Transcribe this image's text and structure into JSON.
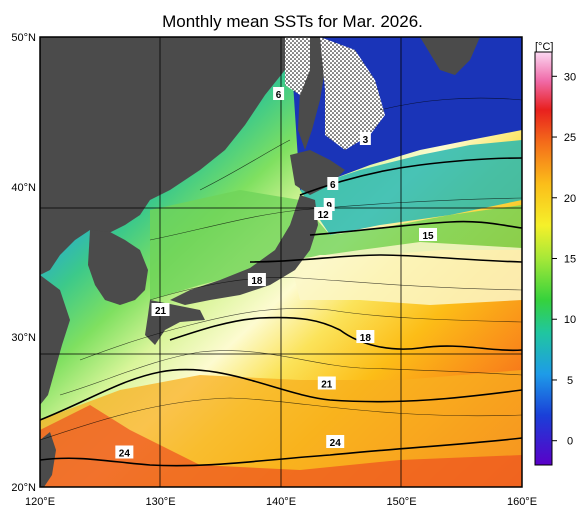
{
  "title": "Monthly mean SSTs for Mar. 2026.",
  "unit_label": "[°C]",
  "colorbar": {
    "ticks": [
      0,
      5,
      10,
      15,
      20,
      25,
      30
    ],
    "min": -2,
    "max": 32
  },
  "axes": {
    "lon_ticks": [
      "120°E",
      "130°E",
      "140°E",
      "150°E",
      "160°E"
    ],
    "lat_ticks": [
      "50°N",
      "40°N",
      "30°N",
      "20°N"
    ],
    "lon_range": [
      120,
      160
    ],
    "lat_range": [
      20,
      50
    ]
  },
  "contour_labels": [
    {
      "text": "3",
      "lon": 147,
      "lat": 43.2
    },
    {
      "text": "6",
      "lon": 139.8,
      "lat": 46.2
    },
    {
      "text": "6",
      "lon": 144.3,
      "lat": 40.2
    },
    {
      "text": "9",
      "lon": 144.0,
      "lat": 38.8
    },
    {
      "text": "12",
      "lon": 143.5,
      "lat": 38.2
    },
    {
      "text": "15",
      "lon": 152.2,
      "lat": 36.8
    },
    {
      "text": "18",
      "lon": 138.0,
      "lat": 33.8
    },
    {
      "text": "18",
      "lon": 147.0,
      "lat": 30.0
    },
    {
      "text": "21",
      "lon": 130.0,
      "lat": 31.8
    },
    {
      "text": "21",
      "lon": 143.8,
      "lat": 26.9
    },
    {
      "text": "24",
      "lon": 127.0,
      "lat": 22.3
    },
    {
      "text": "24",
      "lon": 144.5,
      "lat": 23.0
    }
  ],
  "colors": {
    "land": "#4b4b4b",
    "ice_hatch": "#ffffff",
    "grid": "#000000"
  }
}
